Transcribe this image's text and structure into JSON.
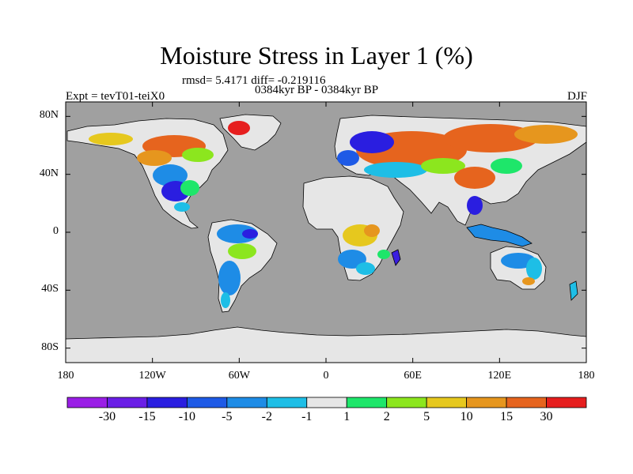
{
  "title": "Moisture Stress in Layer 1 (%)",
  "stats_line": "rmsd= 5.4171 diff= -0.219116",
  "period_line": "0384kyr BP - 0384kyr BP",
  "experiment": "Expt = tevT01-teiX0",
  "season": "DJF",
  "axes": {
    "lat_ticks": [
      {
        "value": 80,
        "label": "80N"
      },
      {
        "value": 40,
        "label": "40N"
      },
      {
        "value": 0,
        "label": "0"
      },
      {
        "value": -40,
        "label": "40S"
      },
      {
        "value": -80,
        "label": "80S"
      }
    ],
    "lon_ticks": [
      {
        "value": -180,
        "label": "180"
      },
      {
        "value": -120,
        "label": "120W"
      },
      {
        "value": -60,
        "label": "60W"
      },
      {
        "value": 0,
        "label": "0"
      },
      {
        "value": 60,
        "label": "60E"
      },
      {
        "value": 120,
        "label": "120E"
      },
      {
        "value": 180,
        "label": "180"
      }
    ],
    "lat_range": [
      -90,
      90
    ],
    "lon_range": [
      -180,
      180
    ]
  },
  "colorbar": {
    "colors": [
      "#9a1ee6",
      "#6a1ee6",
      "#2a1ee0",
      "#1e5ae6",
      "#1e8ce6",
      "#1ebee6",
      "#e6e6e6",
      "#1ee66a",
      "#8ce61e",
      "#e6c81e",
      "#e6961e",
      "#e6641e",
      "#e61e1e"
    ],
    "labels": [
      "-30",
      "-15",
      "-10",
      "-5",
      "-2",
      "-1",
      "1",
      "2",
      "5",
      "10",
      "15",
      "30"
    ]
  },
  "colors": {
    "ocean": "#a0a0a0",
    "land_neutral": "#e6e6e6"
  }
}
